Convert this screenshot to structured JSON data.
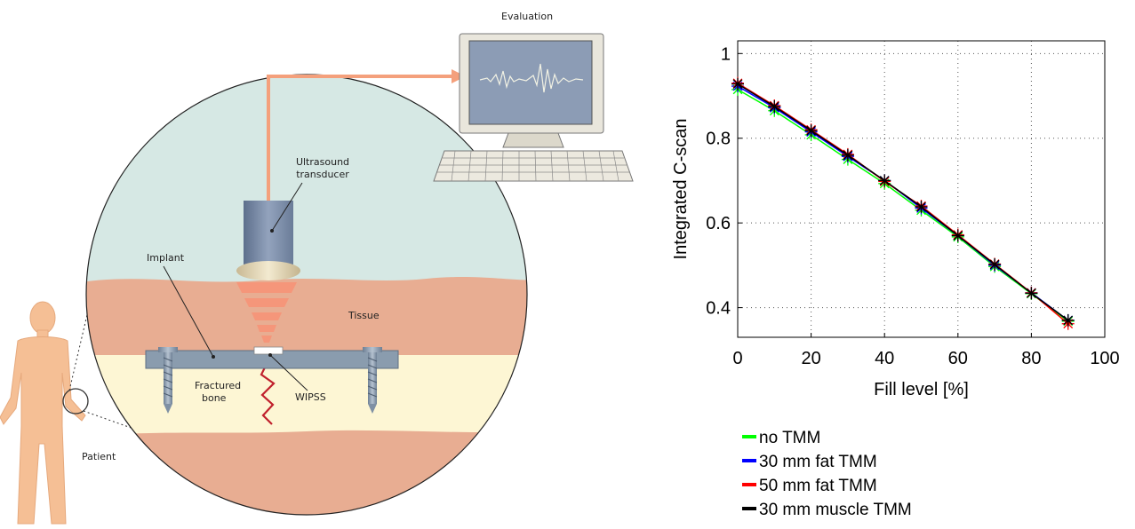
{
  "diagram": {
    "labels": {
      "evaluation": "Evaluation",
      "transducer_line1": "Ultrasound",
      "transducer_line2": "transducer",
      "implant": "Implant",
      "tissue": "Tissue",
      "bone_line1": "Fractured",
      "bone_line2": "bone",
      "wipss": "WIPSS",
      "patient": "Patient"
    },
    "colors": {
      "body": "#f5bf95",
      "tissue": "#e8ad92",
      "bone": "#fdf6d4",
      "water": "#d6e8e4",
      "arrow": "#f4a07c",
      "implant": "#8a9cae",
      "screen": "#8c9cb5"
    }
  },
  "chart_data": {
    "type": "line",
    "xlabel": "Fill level [%]",
    "ylabel": "Integrated C-scan",
    "xlim": [
      0,
      100
    ],
    "ylim": [
      0.33,
      1.03
    ],
    "xticks": [
      0,
      20,
      40,
      60,
      80,
      100
    ],
    "xtick_labels": [
      "0",
      "20",
      "40",
      "60",
      "80",
      "100"
    ],
    "yticks": [
      0.4,
      0.6,
      0.8,
      1.0
    ],
    "ytick_labels": [
      "0.4",
      "0.6",
      "0.8",
      "1"
    ],
    "grid": true,
    "legend_position": "below",
    "x": [
      0,
      10,
      20,
      30,
      40,
      50,
      60,
      70,
      80,
      90
    ],
    "series": [
      {
        "name": "no TMM",
        "color": "#00ff00",
        "values": [
          0.915,
          0.865,
          0.808,
          0.75,
          0.693,
          0.63,
          0.567,
          0.497,
          0.433,
          0.368
        ]
      },
      {
        "name": "30 mm fat TMM",
        "color": "#0000ff",
        "values": [
          0.923,
          0.872,
          0.815,
          0.757,
          0.7,
          0.635,
          0.57,
          0.5,
          0.435,
          0.37
        ]
      },
      {
        "name": "50 mm fat TMM",
        "color": "#ff0000",
        "values": [
          0.93,
          0.877,
          0.82,
          0.762,
          0.698,
          0.64,
          0.572,
          0.503,
          0.435,
          0.362
        ]
      },
      {
        "name": "30 mm muscle TMM",
        "color": "#000000",
        "values": [
          0.928,
          0.875,
          0.818,
          0.76,
          0.7,
          0.638,
          0.57,
          0.502,
          0.434,
          0.37
        ]
      }
    ]
  }
}
